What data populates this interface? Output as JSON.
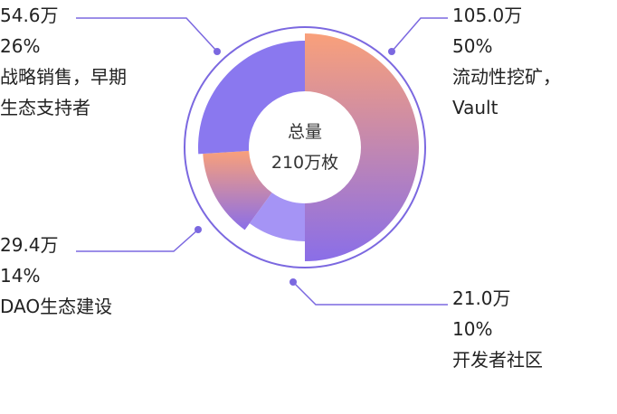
{
  "chart_data": {
    "type": "pie",
    "style": "donut",
    "title": "",
    "center_label": "总量",
    "center_value": "210万枚",
    "total": 210,
    "unit": "万",
    "slices": [
      {
        "amount": "105.0万",
        "percent": "50%",
        "label_lines": [
          "流动性挖矿，",
          "Vault"
        ],
        "value": 105.0,
        "fraction": 0.5,
        "color_start": "#f9a07a",
        "color_end": "#8a6ee8"
      },
      {
        "amount": "21.0万",
        "percent": "10%",
        "label_lines": [
          "开发者社区"
        ],
        "value": 21.0,
        "fraction": 0.1,
        "color_start": "#a594f5",
        "color_end": "#a594f5"
      },
      {
        "amount": "29.4万",
        "percent": "14%",
        "label_lines": [
          "DAO生态建设"
        ],
        "value": 29.4,
        "fraction": 0.14,
        "color_start": "#f9a07a",
        "color_end": "#8a6ee8"
      },
      {
        "amount": "54.6万",
        "percent": "26%",
        "label_lines": [
          "战略销售，早期",
          "生态支持者"
        ],
        "value": 54.6,
        "fraction": 0.26,
        "color_start": "#8a78ef",
        "color_end": "#8a78ef"
      }
    ],
    "legend": "none",
    "accent_color": "#7b68e0"
  }
}
